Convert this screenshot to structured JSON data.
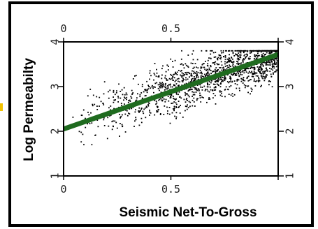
{
  "chart_data": {
    "type": "scatter",
    "title": "",
    "xlabel": "Seismic Net-To-Gross",
    "ylabel": "Log Permeabilty",
    "xlim": [
      0,
      1
    ],
    "ylim": [
      1,
      4
    ],
    "x_ticks": [
      0,
      0.5,
      1
    ],
    "y_ticks": [
      1,
      2,
      3,
      4
    ],
    "x_tick_labels": [
      "0",
      "0.5"
    ],
    "y_tick_labels": [
      "1",
      "2",
      "3",
      "4"
    ],
    "top_x_tick_labels": [
      "0",
      "0.5"
    ],
    "right_y_tick_labels": [
      "1",
      "2",
      "3",
      "4"
    ],
    "grid": false,
    "colors": {
      "points": "#000000",
      "fit": "#1f6b1f",
      "frame": "#000000",
      "accent": "#f2c200"
    },
    "series": [
      {
        "kind": "points",
        "point_count": 1500,
        "x_range": [
          0.03,
          1.0
        ],
        "y_range": [
          1.7,
          3.8
        ]
      },
      {
        "kind": "fit-line",
        "x": [
          0.0,
          1.0
        ],
        "y": [
          2.05,
          3.72
        ]
      }
    ]
  }
}
